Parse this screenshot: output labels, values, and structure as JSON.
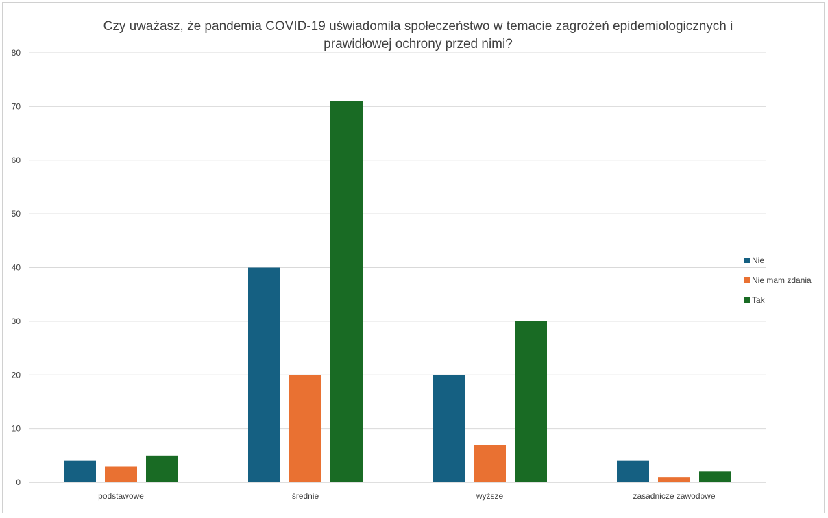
{
  "chart_data": {
    "type": "bar",
    "title": "Czy uważasz, że pandemia COVID-19 uświadomiła społeczeństwo w temacie zagrożeń epidemiologicznych i prawidłowej ochrony przed nimi?",
    "title_lines": [
      "Czy uważasz, że pandemia COVID-19 uświadomiła społeczeństwo w temacie zagrożeń epidemiologicznych i",
      "prawidłowej ochrony przed nimi?"
    ],
    "categories": [
      "podstawowe",
      "średnie",
      "wyższe",
      "zasadnicze zawodowe"
    ],
    "series": [
      {
        "name": "Nie",
        "color": "#156082",
        "values": [
          4,
          40,
          20,
          4
        ]
      },
      {
        "name": "Nie mam zdania",
        "color": "#e97132",
        "values": [
          3,
          20,
          7,
          1
        ]
      },
      {
        "name": "Tak",
        "color": "#196b24",
        "values": [
          5,
          71,
          30,
          2
        ]
      }
    ],
    "xlabel": "",
    "ylabel": "",
    "ylim": [
      0,
      80
    ],
    "yticks": [
      0,
      10,
      20,
      30,
      40,
      50,
      60,
      70,
      80
    ],
    "grid": true,
    "legend_position": "right"
  }
}
